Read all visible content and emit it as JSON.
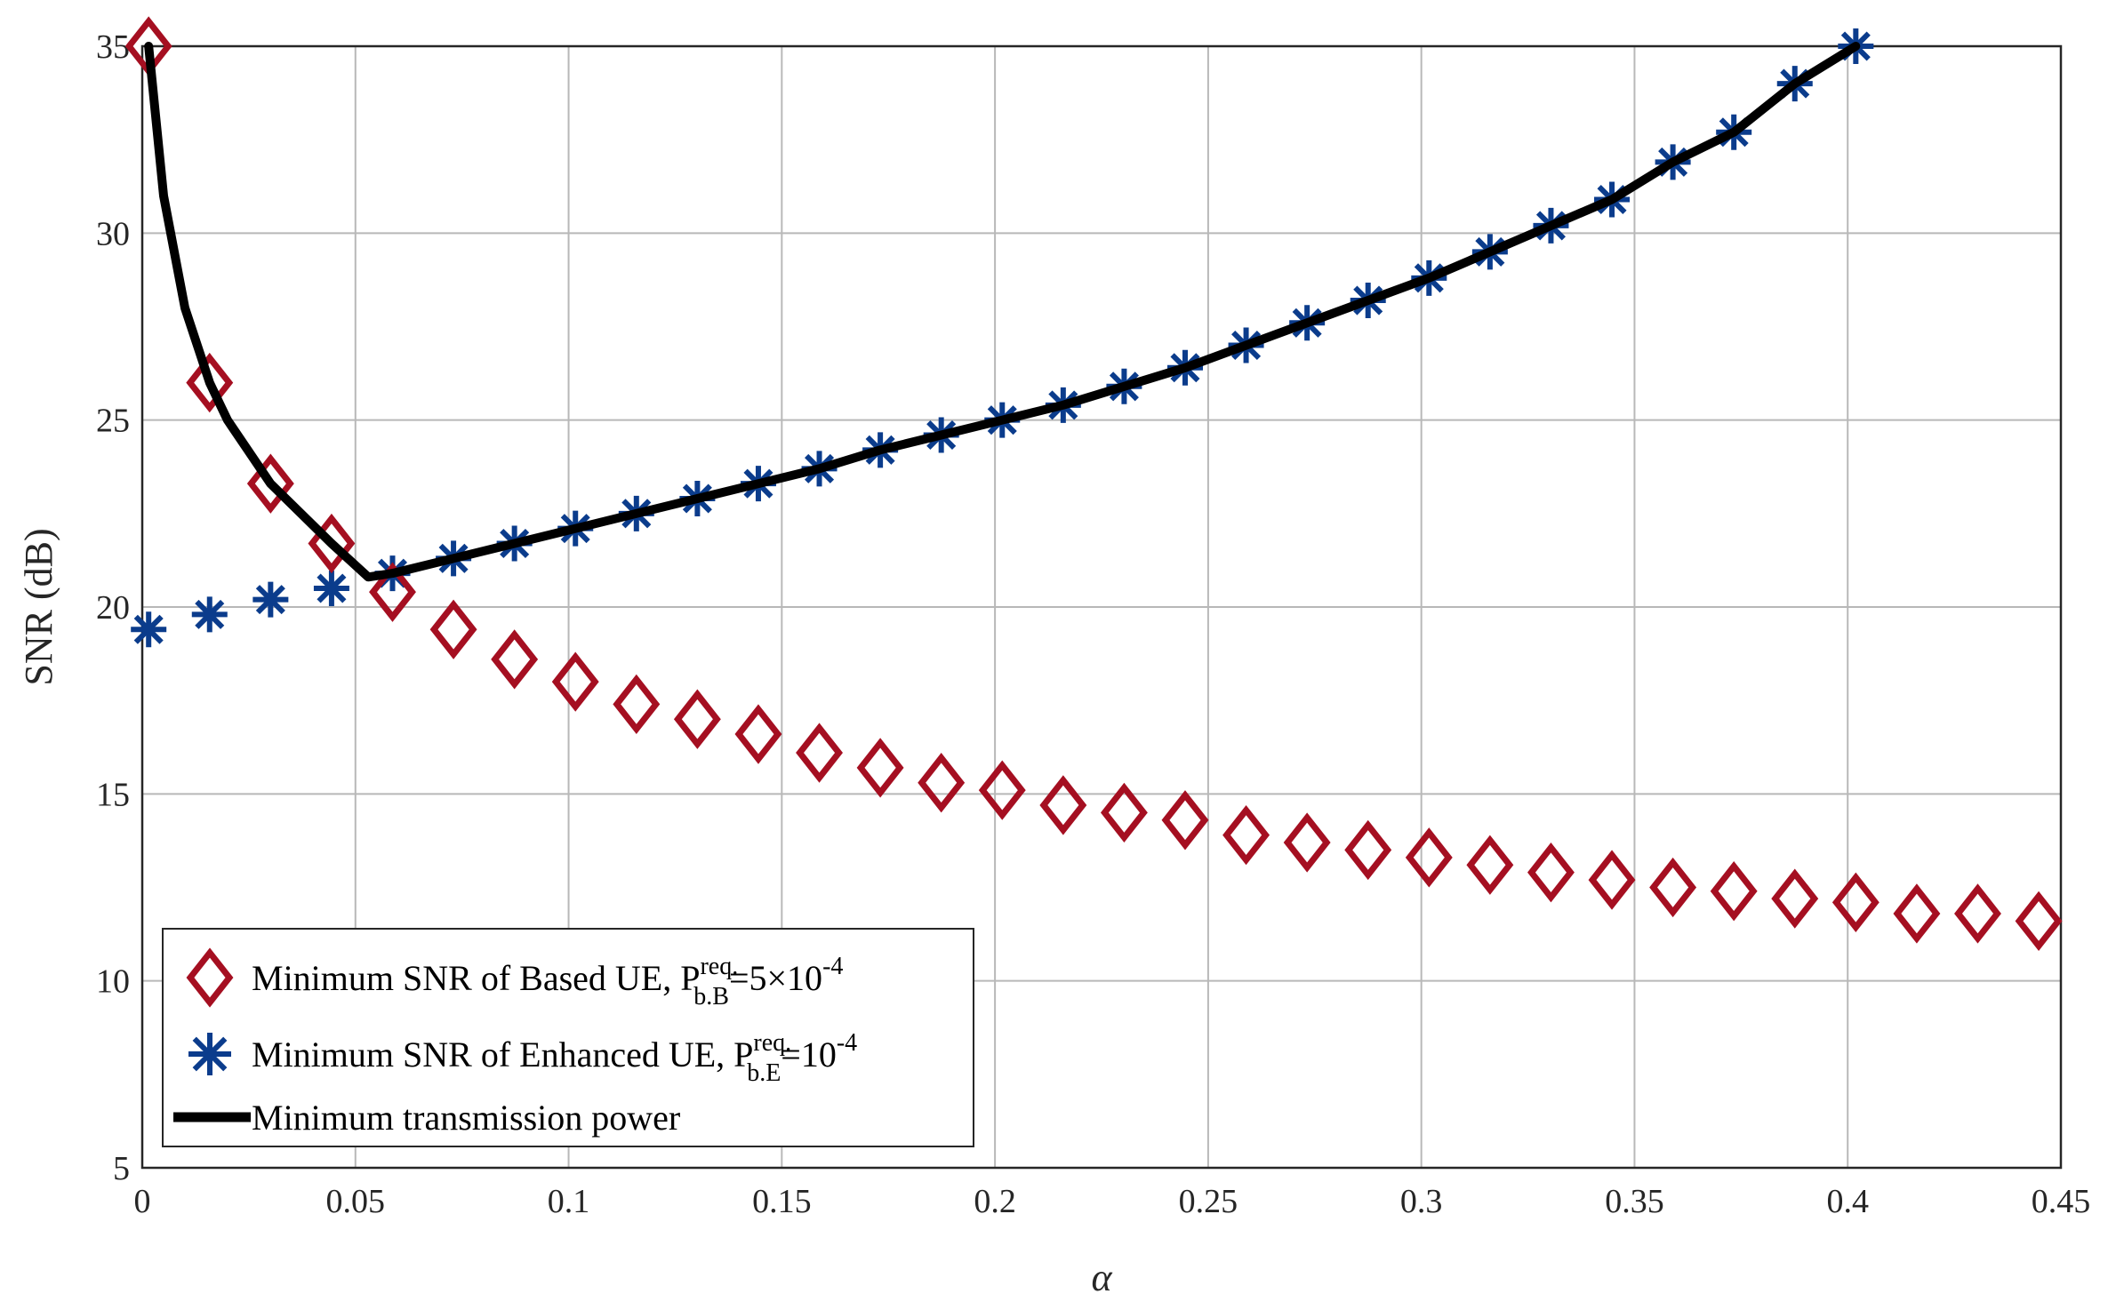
{
  "chart_data": {
    "type": "line",
    "xlabel": "α",
    "ylabel": "SNR (dB)",
    "xlim": [
      0,
      0.45
    ],
    "ylim": [
      5,
      35
    ],
    "xticks": [
      "0",
      "0.05",
      "0.1",
      "0.15",
      "0.2",
      "0.25",
      "0.3",
      "0.35",
      "0.4",
      "0.45"
    ],
    "yticks": [
      "5",
      "10",
      "15",
      "20",
      "25",
      "30",
      "35"
    ],
    "grid": true,
    "legend_position": "bottom-left",
    "series": [
      {
        "name": "Minimum SNR of Based UE, P",
        "name_sub": "b.B",
        "name_sup": "req.",
        "name_suffix": "=5×10",
        "name_suffix_sup": "-4",
        "marker": "diamond",
        "color": "#a50f21",
        "x": [
          0.0015,
          0.0158,
          0.0301,
          0.0444,
          0.0587,
          0.073,
          0.0873,
          0.1016,
          0.1159,
          0.1302,
          0.1445,
          0.1588,
          0.1731,
          0.1874,
          0.2017,
          0.216,
          0.2303,
          0.2446,
          0.2589,
          0.2732,
          0.2875,
          0.3018,
          0.3161,
          0.3304,
          0.3447,
          0.359,
          0.3733,
          0.3876,
          0.4019,
          0.4162,
          0.4305,
          0.4448
        ],
        "y": [
          35.0,
          26.0,
          23.3,
          21.7,
          20.4,
          19.4,
          18.6,
          18.0,
          17.4,
          17.0,
          16.6,
          16.1,
          15.7,
          15.3,
          15.1,
          14.7,
          14.5,
          14.3,
          13.9,
          13.7,
          13.5,
          13.3,
          13.1,
          12.9,
          12.7,
          12.5,
          12.4,
          12.2,
          12.1,
          11.8,
          11.8,
          11.6
        ]
      },
      {
        "name": "Minimum SNR of Enhanced UE, P",
        "name_sub": "b.E",
        "name_sup": "req.",
        "name_suffix": "=10",
        "name_suffix_sup": "-4",
        "marker": "asterisk",
        "color": "#0b3c8c",
        "x": [
          0.0015,
          0.0158,
          0.0301,
          0.0444,
          0.0587,
          0.073,
          0.0873,
          0.1016,
          0.1159,
          0.1302,
          0.1445,
          0.1588,
          0.1731,
          0.1874,
          0.2017,
          0.216,
          0.2303,
          0.2446,
          0.2589,
          0.2732,
          0.2875,
          0.3018,
          0.3161,
          0.3304,
          0.3447,
          0.359,
          0.3733,
          0.3876,
          0.4019
        ],
        "y": [
          19.4,
          19.8,
          20.2,
          20.5,
          20.9,
          21.3,
          21.7,
          22.1,
          22.5,
          22.9,
          23.3,
          23.7,
          24.2,
          24.6,
          25.0,
          25.4,
          25.9,
          26.4,
          27.0,
          27.6,
          28.2,
          28.8,
          29.5,
          30.2,
          30.9,
          31.9,
          32.7,
          34.0,
          35.0
        ]
      },
      {
        "name": "Minimum transmission power",
        "marker": "none",
        "color": "#000000",
        "x": [
          0.0015,
          0.005,
          0.01,
          0.0158,
          0.02,
          0.0301,
          0.0444,
          0.053,
          0.0587,
          0.073,
          0.0873,
          0.1016,
          0.1159,
          0.1302,
          0.1445,
          0.1588,
          0.1731,
          0.1874,
          0.2017,
          0.216,
          0.2303,
          0.2446,
          0.2589,
          0.2732,
          0.2875,
          0.3018,
          0.3161,
          0.3304,
          0.3447,
          0.359,
          0.3733,
          0.3876,
          0.4019
        ],
        "y": [
          35.0,
          31.0,
          28.0,
          26.0,
          25.0,
          23.3,
          21.7,
          20.8,
          20.9,
          21.3,
          21.7,
          22.1,
          22.5,
          22.9,
          23.3,
          23.7,
          24.2,
          24.6,
          25.0,
          25.4,
          25.9,
          26.4,
          27.0,
          27.6,
          28.2,
          28.8,
          29.5,
          30.2,
          30.9,
          31.9,
          32.7,
          34.0,
          35.0
        ]
      }
    ]
  }
}
